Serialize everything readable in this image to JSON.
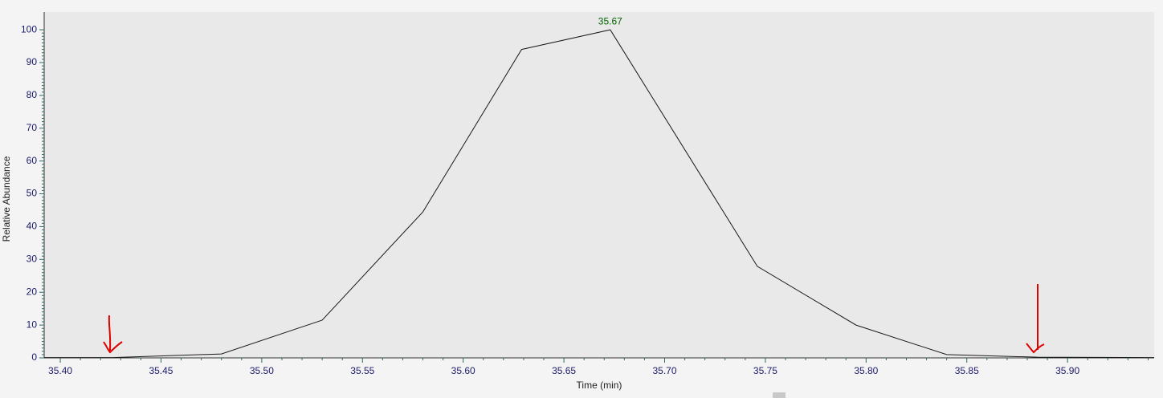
{
  "chart_data": {
    "type": "line",
    "x_label": "Time (min)",
    "y_label": "Relative Abundance",
    "x": [
      35.392,
      35.426,
      35.48,
      35.53,
      35.58,
      35.629,
      35.673,
      35.746,
      35.795,
      35.84,
      35.885,
      35.943
    ],
    "values": [
      0.1,
      0.1,
      1.2,
      11.5,
      44.5,
      94,
      100,
      27.9,
      10,
      1,
      0.2,
      0.1
    ],
    "color": "#1a1a1a",
    "xlim": [
      35.392,
      35.943
    ],
    "ylim": [
      0,
      105.4
    ],
    "xticks": [
      {
        "value": 35.4,
        "label": "35.40"
      },
      {
        "value": 35.45,
        "label": "35.45"
      },
      {
        "value": 35.5,
        "label": "35.50"
      },
      {
        "value": 35.55,
        "label": "35.55"
      },
      {
        "value": 35.6,
        "label": "35.60"
      },
      {
        "value": 35.65,
        "label": "35.65"
      },
      {
        "value": 35.7,
        "label": "35.70"
      },
      {
        "value": 35.75,
        "label": "35.75"
      },
      {
        "value": 35.8,
        "label": "35.80"
      },
      {
        "value": 35.85,
        "label": "35.85"
      },
      {
        "value": 35.9,
        "label": "35.90"
      }
    ],
    "yticks": [
      0,
      10,
      20,
      30,
      40,
      50,
      60,
      70,
      80,
      90,
      100
    ],
    "annotations": [
      {
        "text": "35.67",
        "x": 35.673,
        "y": 100,
        "color": "#006400"
      }
    ]
  }
}
